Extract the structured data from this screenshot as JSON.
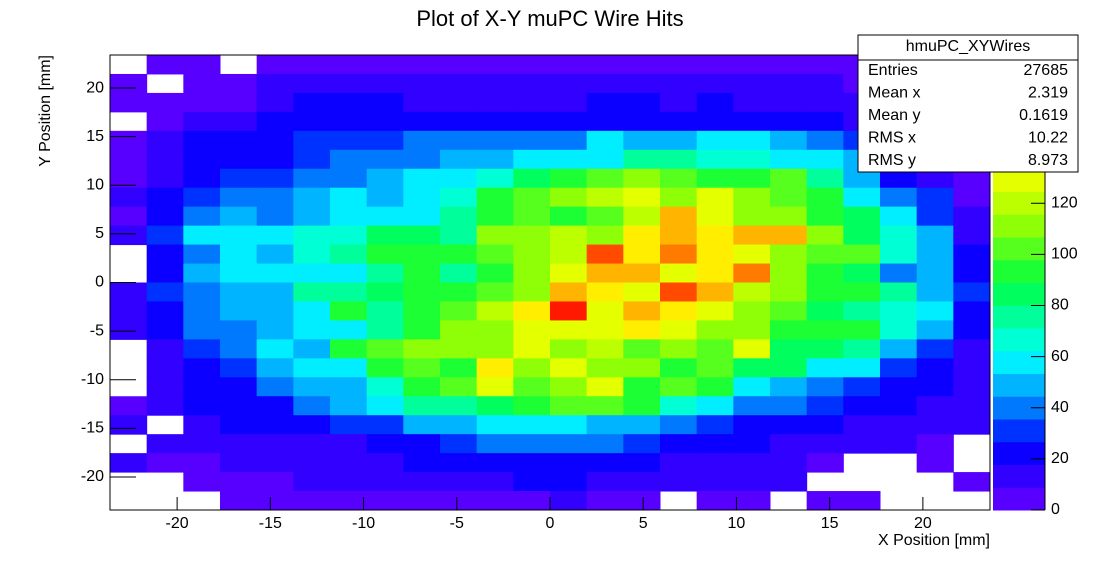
{
  "chart_data": {
    "type": "heatmap",
    "title": "Plot of X-Y muPC Wire Hits",
    "x_label": "X Position [mm]",
    "y_label": "Y Position [mm]",
    "xlim": [
      -23.6,
      23.6
    ],
    "ylim": [
      -23.4,
      23.4
    ],
    "xticks": [
      -20,
      -15,
      -10,
      -5,
      0,
      5,
      10,
      15,
      20
    ],
    "yticks": [
      -20,
      -15,
      -10,
      -5,
      0,
      5,
      10,
      15,
      20
    ],
    "zlim": [
      0,
      178
    ],
    "zticks": [
      0,
      20,
      40,
      60,
      80,
      100,
      120
    ],
    "z": [
      [
        0,
        5,
        5,
        0,
        8,
        8,
        8,
        8,
        8,
        8,
        8,
        8,
        8,
        8,
        8,
        8,
        8,
        8,
        8,
        8,
        5,
        5,
        5,
        5
      ],
      [
        8,
        0,
        8,
        8,
        10,
        10,
        15,
        15,
        12,
        10,
        10,
        12,
        12,
        10,
        10,
        12,
        15,
        12,
        12,
        10,
        8,
        8,
        5,
        5
      ],
      [
        8,
        8,
        8,
        8,
        15,
        20,
        20,
        25,
        15,
        15,
        12,
        15,
        12,
        18,
        18,
        12,
        20,
        15,
        15,
        10,
        10,
        8,
        8,
        5
      ],
      [
        0,
        8,
        10,
        12,
        20,
        20,
        22,
        25,
        25,
        22,
        25,
        22,
        25,
        22,
        22,
        25,
        25,
        22,
        22,
        18,
        15,
        12,
        8,
        5
      ],
      [
        8,
        10,
        18,
        25,
        22,
        30,
        30,
        35,
        40,
        40,
        40,
        42,
        42,
        55,
        45,
        45,
        55,
        55,
        52,
        40,
        30,
        18,
        10,
        8
      ],
      [
        8,
        15,
        20,
        25,
        25,
        35,
        40,
        40,
        40,
        45,
        50,
        55,
        58,
        60,
        75,
        80,
        70,
        65,
        55,
        55,
        45,
        25,
        12,
        8
      ],
      [
        8,
        15,
        25,
        35,
        35,
        40,
        40,
        50,
        55,
        55,
        65,
        85,
        95,
        100,
        110,
        105,
        95,
        90,
        100,
        80,
        50,
        25,
        15,
        8
      ],
      [
        10,
        20,
        35,
        40,
        40,
        52,
        55,
        52,
        55,
        70,
        90,
        100,
        110,
        120,
        130,
        115,
        125,
        110,
        100,
        90,
        60,
        40,
        30,
        8
      ],
      [
        8,
        25,
        40,
        45,
        40,
        50,
        60,
        60,
        60,
        80,
        95,
        105,
        95,
        105,
        120,
        150,
        125,
        115,
        110,
        95,
        85,
        60,
        35,
        10
      ],
      [
        10,
        30,
        55,
        60,
        60,
        65,
        70,
        85,
        85,
        80,
        110,
        115,
        120,
        115,
        135,
        150,
        135,
        150,
        150,
        110,
        85,
        70,
        50,
        10
      ],
      [
        0,
        25,
        40,
        55,
        50,
        65,
        80,
        95,
        90,
        90,
        100,
        115,
        120,
        165,
        140,
        155,
        135,
        130,
        115,
        105,
        105,
        70,
        50,
        25
      ],
      [
        0,
        25,
        45,
        60,
        60,
        60,
        60,
        80,
        95,
        80,
        95,
        115,
        130,
        150,
        150,
        130,
        135,
        155,
        110,
        90,
        85,
        40,
        45,
        25
      ],
      [
        10,
        30,
        40,
        50,
        50,
        75,
        80,
        85,
        90,
        90,
        100,
        115,
        150,
        135,
        130,
        165,
        145,
        120,
        110,
        95,
        90,
        80,
        45,
        30
      ],
      [
        10,
        25,
        40,
        50,
        50,
        55,
        95,
        80,
        90,
        100,
        120,
        140,
        175,
        125,
        150,
        140,
        125,
        110,
        100,
        85,
        80,
        70,
        55,
        25
      ],
      [
        10,
        20,
        40,
        40,
        50,
        55,
        55,
        80,
        90,
        110,
        115,
        130,
        130,
        130,
        135,
        130,
        115,
        110,
        95,
        90,
        90,
        65,
        45,
        20
      ],
      [
        0,
        15,
        30,
        40,
        55,
        50,
        95,
        100,
        110,
        115,
        110,
        130,
        115,
        120,
        105,
        110,
        105,
        130,
        85,
        85,
        75,
        45,
        30,
        15
      ],
      [
        0,
        15,
        20,
        35,
        50,
        55,
        60,
        90,
        100,
        95,
        135,
        115,
        130,
        115,
        110,
        95,
        100,
        85,
        85,
        60,
        55,
        30,
        20,
        12
      ],
      [
        0,
        15,
        20,
        25,
        40,
        45,
        50,
        65,
        90,
        100,
        125,
        105,
        110,
        130,
        90,
        100,
        95,
        60,
        50,
        40,
        30,
        20,
        20,
        12
      ],
      [
        5,
        15,
        20,
        25,
        25,
        40,
        50,
        55,
        75,
        80,
        85,
        95,
        100,
        105,
        95,
        70,
        55,
        40,
        40,
        30,
        25,
        20,
        15,
        12
      ],
      [
        10,
        0,
        15,
        20,
        20,
        25,
        30,
        35,
        45,
        50,
        60,
        55,
        60,
        50,
        45,
        40,
        30,
        25,
        25,
        20,
        15,
        15,
        10,
        10
      ],
      [
        0,
        10,
        10,
        10,
        15,
        15,
        15,
        20,
        25,
        35,
        40,
        40,
        40,
        40,
        30,
        25,
        20,
        20,
        15,
        15,
        15,
        12,
        8,
        0
      ],
      [
        10,
        8,
        8,
        10,
        10,
        10,
        12,
        15,
        20,
        22,
        20,
        25,
        25,
        20,
        18,
        15,
        15,
        12,
        10,
        8,
        0,
        0,
        8,
        0
      ],
      [
        0,
        0,
        8,
        8,
        8,
        10,
        10,
        12,
        12,
        15,
        15,
        18,
        18,
        12,
        12,
        12,
        10,
        10,
        10,
        0,
        0,
        0,
        0,
        8
      ],
      [
        0,
        0,
        0,
        8,
        8,
        8,
        8,
        8,
        8,
        8,
        8,
        8,
        10,
        8,
        8,
        0,
        8,
        8,
        0,
        8,
        8,
        0,
        0,
        0
      ]
    ],
    "stats": {
      "title": "hmuPC_XYWires",
      "rows": [
        {
          "label": "Entries",
          "value": 27685
        },
        {
          "label": "Mean x",
          "value": 2.319
        },
        {
          "label": "Mean y",
          "value": 0.1619
        },
        {
          "label": "RMS x",
          "value": 10.22
        },
        {
          "label": "RMS y",
          "value": 8.973
        }
      ]
    }
  }
}
